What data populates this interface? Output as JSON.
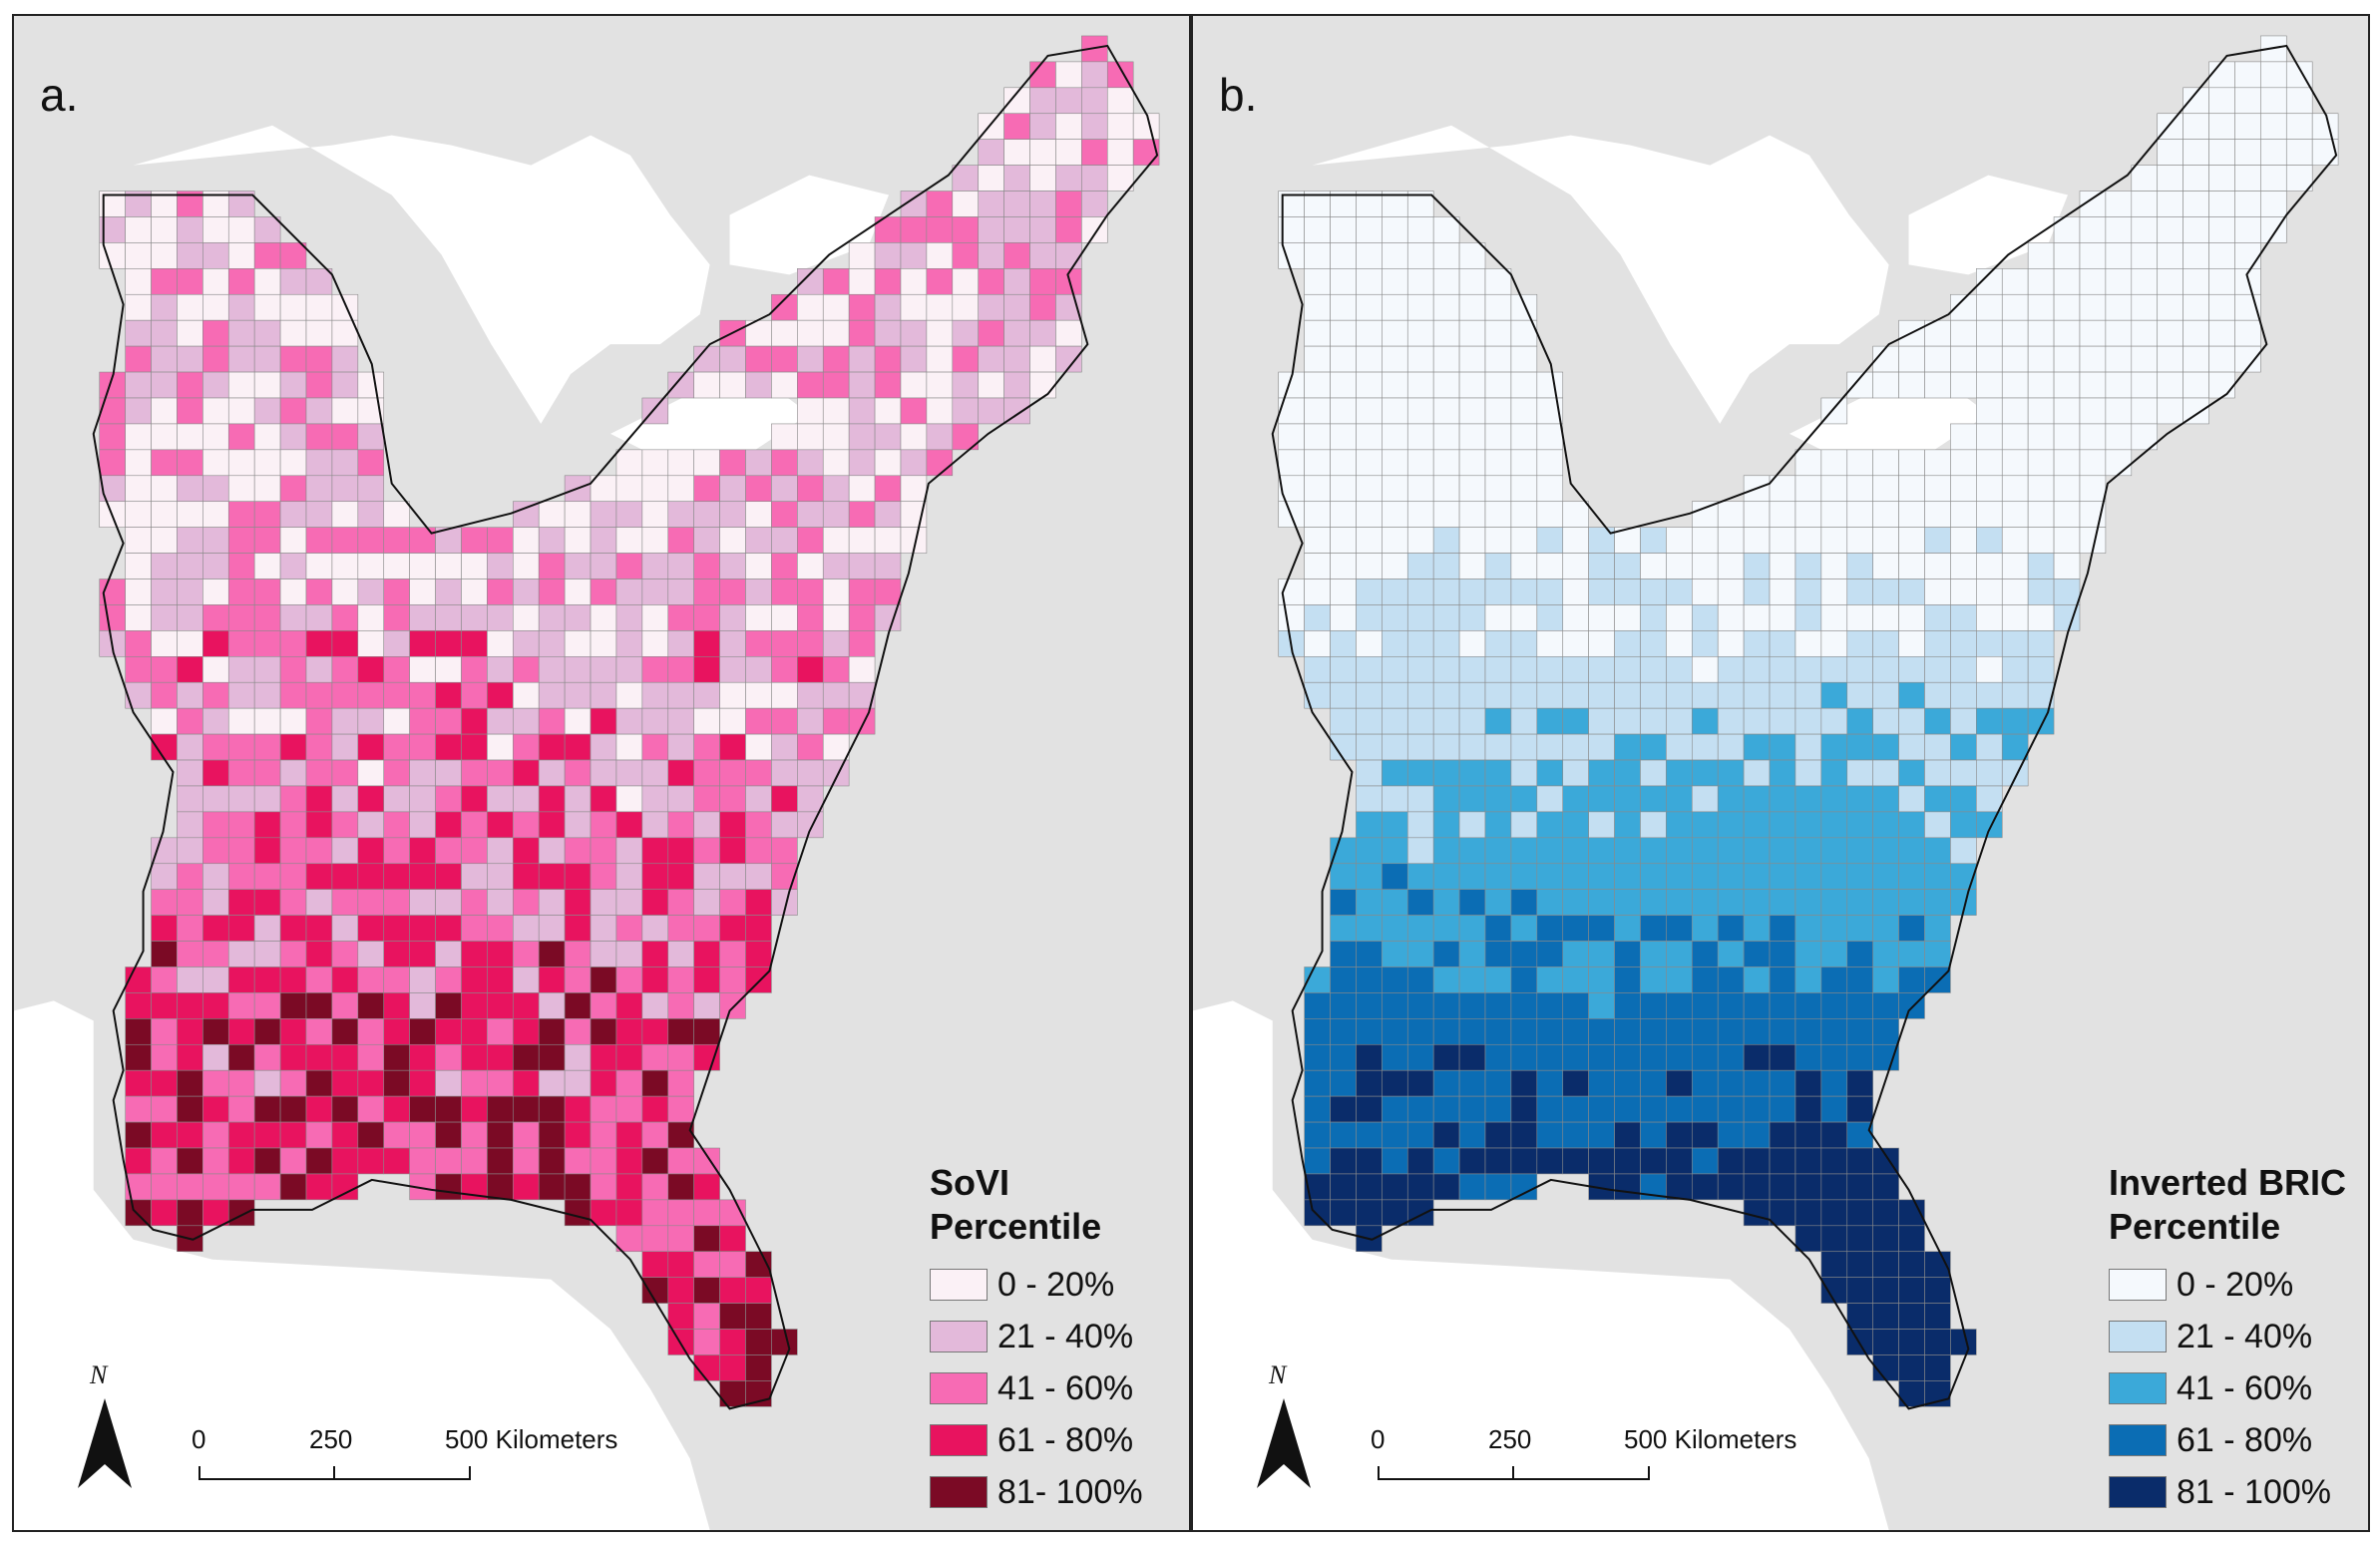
{
  "panels": [
    {
      "id": "a",
      "letter": "a.",
      "legend_title_1": "SoVI",
      "legend_title_2": "Percentile",
      "legend": [
        {
          "label": "0 - 20%",
          "color": "#fbf1f6"
        },
        {
          "label": "21 - 40%",
          "color": "#e3b9da"
        },
        {
          "label": "41 - 60%",
          "color": "#f76bb4"
        },
        {
          "label": "61 - 80%",
          "color": "#e8135f"
        },
        {
          "label": "81- 100%",
          "color": "#7b0a25"
        }
      ],
      "scale": {
        "t0": "0",
        "t1": "250",
        "t2": "500 Kilometers"
      },
      "north": "N"
    },
    {
      "id": "b",
      "letter": "b.",
      "legend_title_1": "Inverted BRIC",
      "legend_title_2": "Percentile",
      "legend": [
        {
          "label": "0 - 20%",
          "color": "#f5f9fd"
        },
        {
          "label": "21 - 40%",
          "color": "#c4dff2"
        },
        {
          "label": "41 - 60%",
          "color": "#3ba9d9"
        },
        {
          "label": "61 - 80%",
          "color": "#0b6db4"
        },
        {
          "label": "81 - 100%",
          "color": "#0a2c6a"
        }
      ],
      "scale": {
        "t0": "0",
        "t1": "250",
        "t2": "500 Kilometers"
      },
      "north": "N"
    }
  ],
  "colors": {
    "land_outside": "#e2e2e2",
    "water": "#ffffff",
    "border": "#111111"
  }
}
